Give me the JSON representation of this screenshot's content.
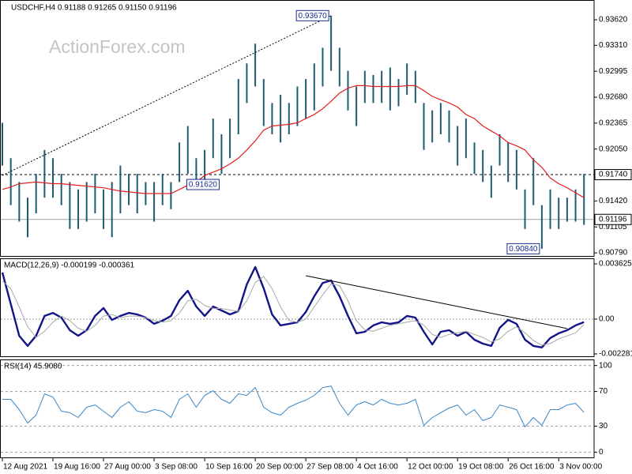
{
  "chart_data": [
    {
      "type": "hilo",
      "title": "USDCHF,H4 0.91188 0.91265 0.91150 0.91196",
      "watermark": "ActionForex.com",
      "color": "#1d5a73",
      "ylim": [
        0.90743,
        0.9386
      ],
      "yticks": [
        {
          "value": 0.9362,
          "label": "0.93620"
        },
        {
          "value": 0.9331,
          "label": "0.93310"
        },
        0.92995,
        {
          "value": 0.9268,
          "label": "0.92680"
        },
        0.92365,
        {
          "value": 0.9205,
          "label": "0.92050"
        },
        {
          "value": 0.9142,
          "label": "0.91420"
        },
        0.91105,
        {
          "value": 0.9079,
          "label": "0.90790"
        }
      ],
      "high": [
        0.9237,
        0.9194,
        0.9165,
        0.9146,
        0.9175,
        0.9204,
        0.9194,
        0.9175,
        0.9165,
        0.9156,
        0.9165,
        0.9175,
        0.9156,
        0.9165,
        0.9185,
        0.9175,
        0.9175,
        0.9165,
        0.9165,
        0.9175,
        0.9165,
        0.9213,
        0.9233,
        0.9194,
        0.9204,
        0.9242,
        0.9223,
        0.9242,
        0.929,
        0.9309,
        0.9333,
        0.929,
        0.9261,
        0.9271,
        0.9261,
        0.9281,
        0.929,
        0.9309,
        0.9328,
        0.9367,
        0.9328,
        0.93,
        0.9281,
        0.93,
        0.9295,
        0.93,
        0.9304,
        0.929,
        0.9309,
        0.93,
        0.9261,
        0.9252,
        0.9261,
        0.9252,
        0.9233,
        0.9242,
        0.9213,
        0.9204,
        0.9185,
        0.9223,
        0.9213,
        0.9204,
        0.9156,
        0.9194,
        0.9137,
        0.9156,
        0.9146,
        0.9146,
        0.9156,
        0.9175
      ],
      "low": [
        0.9185,
        0.9137,
        0.9117,
        0.9098,
        0.9127,
        0.9146,
        0.9146,
        0.9137,
        0.9108,
        0.9108,
        0.9117,
        0.9127,
        0.9108,
        0.9098,
        0.9127,
        0.9137,
        0.9127,
        0.9137,
        0.9117,
        0.9137,
        0.9132,
        0.9165,
        0.9175,
        0.9156,
        0.9165,
        0.9194,
        0.9175,
        0.9194,
        0.9223,
        0.9261,
        0.9281,
        0.9233,
        0.9223,
        0.9213,
        0.9223,
        0.9233,
        0.9242,
        0.9252,
        0.9281,
        0.93,
        0.9281,
        0.9252,
        0.9233,
        0.9261,
        0.9261,
        0.9261,
        0.9252,
        0.9257,
        0.9271,
        0.9261,
        0.9204,
        0.9213,
        0.9223,
        0.9213,
        0.9185,
        0.9194,
        0.9175,
        0.9165,
        0.9146,
        0.9185,
        0.9165,
        0.9156,
        0.9108,
        0.9137,
        0.9084,
        0.9108,
        0.9108,
        0.9117,
        0.9117,
        0.9113
      ],
      "lines": [
        {
          "color": "#e0201f",
          "width": 1.2,
          "values": [
            0.9156,
            0.9159,
            0.9163,
            0.9164,
            0.9165,
            0.9164,
            0.9163,
            0.9163,
            0.9162,
            0.9161,
            0.916,
            0.9159,
            0.9158,
            0.9156,
            0.9154,
            0.9153,
            0.9152,
            0.9151,
            0.9151,
            0.9151,
            0.9151,
            0.9156,
            0.9161,
            0.9165,
            0.9173,
            0.9177,
            0.9181,
            0.9187,
            0.9194,
            0.9204,
            0.9215,
            0.9228,
            0.9233,
            0.9234,
            0.9235,
            0.9237,
            0.9242,
            0.9247,
            0.9254,
            0.9263,
            0.9273,
            0.9279,
            0.9282,
            0.9282,
            0.9281,
            0.9281,
            0.9281,
            0.9281,
            0.9282,
            0.9282,
            0.9276,
            0.9269,
            0.9265,
            0.9261,
            0.9256,
            0.9247,
            0.9242,
            0.9233,
            0.9227,
            0.9221,
            0.9213,
            0.9209,
            0.9204,
            0.9192,
            0.9183,
            0.917,
            0.9163,
            0.9158,
            0.9152,
            0.9146
          ]
        }
      ],
      "trendlines": [
        {
          "x": [
            0,
            39
          ],
          "values": [
            0.9173,
            0.9367
          ],
          "style": "dotted",
          "color": "#000000"
        }
      ],
      "levels": [
        {
          "value": 0.9174,
          "label": "0.91740",
          "style": "dashed"
        },
        {
          "value": 0.91196,
          "label": "0.91196",
          "style": "solid"
        }
      ],
      "annotations": [
        {
          "x": 39,
          "value": 0.9367,
          "label": "0.93670"
        },
        {
          "x": 26,
          "value": 0.9162,
          "label": "0.91620"
        },
        {
          "x": 64,
          "value": 0.9084,
          "label": "0.90840"
        }
      ]
    },
    {
      "type": "line",
      "title": "MACD(12,26,9) -0.000199 -0.000361",
      "ylim": [
        -0.00249,
        0.00399
      ],
      "yticks": [
        0.003625,
        {
          "value": 0,
          "label": "0.00"
        },
        -0.002281
      ],
      "zero_line": true,
      "lines": [
        {
          "color": "#14148a",
          "width": 2.4,
          "values": [
            0.00306,
            0.00098,
            -0.00109,
            -0.00176,
            -0.00109,
            0.00021,
            0.00041,
            0.0001,
            -0.00073,
            -0.00109,
            -0.00073,
            0.00021,
            0.00073,
            -5e-05,
            0.00021,
            0.00041,
            0.00031,
            0.0001,
            -0.00031,
            -0.0001,
            0.00021,
            0.00124,
            0.00186,
            0.00083,
            0.00021,
            0.00083,
            0.00057,
            0.00031,
            0.00052,
            0.00228,
            0.00342,
            0.00202,
            0.00031,
            -0.00041,
            -0.00031,
            -0.00021,
            0.00047,
            0.0015,
            0.00238,
            0.00254,
            0.0015,
            0.00021,
            -0.00093,
            -0.00083,
            -0.00041,
            -0.00021,
            -0.00031,
            -0.00021,
            0.00021,
            0.0001,
            -0.00083,
            -0.00166,
            -0.00083,
            -0.00073,
            -0.00109,
            -0.00083,
            -0.00135,
            -0.00161,
            -0.00176,
            -0.00057,
            -5e-05,
            -0.00031,
            -0.00135,
            -0.00176,
            -0.00186,
            -0.00124,
            -0.00093,
            -0.00073,
            -0.00041,
            -0.000199
          ]
        },
        {
          "color": "#a8a8a8",
          "width": 1,
          "values": [
            0.0025,
            0.002,
            0.0008,
            -0.0005,
            -0.0012,
            -0.0008,
            -0.0002,
            0.0002,
            -0.0001,
            -0.0006,
            -0.0008,
            -0.0004,
            0.0002,
            0.0003,
            0.0001,
            0.0002,
            0.0002,
            0.0001,
            -0.0001,
            -0.0002,
            -0.0001,
            0.0004,
            0.0012,
            0.0013,
            0.0009,
            0.0007,
            0.0007,
            0.0006,
            0.0005,
            0.0012,
            0.0024,
            0.0028,
            0.002,
            0.0008,
            -0.0001,
            -0.0002,
            0.0,
            0.0008,
            0.0016,
            0.0023,
            0.0022,
            0.0012,
            -0.0001,
            -0.0007,
            -0.0008,
            -0.0006,
            -0.0004,
            -0.0003,
            -0.0002,
            -0.0001,
            -0.0004,
            -0.001,
            -0.0012,
            -0.001,
            -0.0009,
            -0.0008,
            -0.001,
            -0.0012,
            -0.0015,
            -0.0013,
            -0.0008,
            -0.0005,
            -0.0009,
            -0.0014,
            -0.0017,
            -0.0016,
            -0.0013,
            -0.0011,
            -0.0009,
            -0.000361
          ]
        }
      ],
      "trendlines": [
        {
          "x": [
            36,
            67
          ],
          "values": [
            0.00285,
            -0.00062
          ],
          "style": "solid",
          "color": "#000000"
        }
      ]
    },
    {
      "type": "line",
      "title": "RSI(14) 45.9080",
      "ylim": [
        -7,
        107
      ],
      "yticks": [
        100,
        70,
        30,
        0
      ],
      "lines": [
        {
          "color": "#3a87c8",
          "width": 1,
          "values": [
            60.9,
            60.9,
            49.1,
            33.6,
            42.7,
            67.3,
            63.6,
            47.3,
            45.5,
            40.0,
            51.8,
            54.5,
            47.3,
            40.0,
            51.8,
            58.2,
            47.3,
            45.5,
            49.1,
            47.3,
            40.0,
            60.9,
            67.3,
            51.8,
            65.5,
            70.9,
            60.9,
            56.4,
            67.3,
            65.5,
            74.5,
            51.8,
            45.5,
            42.7,
            51.8,
            56.4,
            60.0,
            65.5,
            74.5,
            76.4,
            56.4,
            42.7,
            54.5,
            58.2,
            54.5,
            60.9,
            56.4,
            54.5,
            56.4,
            60.9,
            30.9,
            40.0,
            45.5,
            50.9,
            54.5,
            42.7,
            49.1,
            36.4,
            40.0,
            54.5,
            51.8,
            49.1,
            29.1,
            40.0,
            30.9,
            49.1,
            49.1,
            54.5,
            56.4,
            45.9
          ]
        }
      ],
      "categories": [
        "12 Aug 2021",
        null,
        null,
        null,
        null,
        null,
        "19 Aug 16:00",
        null,
        null,
        null,
        null,
        null,
        "27 Aug 00:00",
        null,
        null,
        null,
        null,
        null,
        "3 Sep 08:00",
        null,
        null,
        null,
        null,
        null,
        "10 Sep 16:00",
        null,
        null,
        null,
        null,
        null,
        "20 Sep 00:00",
        null,
        null,
        null,
        null,
        null,
        "27 Sep 08:00",
        null,
        null,
        null,
        null,
        null,
        "4 Oct 16:00",
        null,
        null,
        null,
        null,
        null,
        "12 Oct 00:00",
        null,
        null,
        null,
        null,
        null,
        "19 Oct 08:00",
        null,
        null,
        null,
        null,
        null,
        "26 Oct 16:00",
        null,
        null,
        null,
        null,
        null,
        "3 Nov 00:00",
        null,
        null,
        null
      ]
    }
  ]
}
